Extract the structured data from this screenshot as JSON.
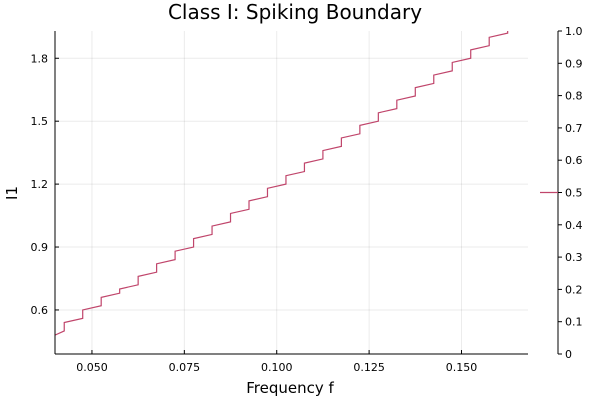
{
  "chart_data": {
    "type": "line",
    "title": "Class I: Spiking Boundary",
    "xlabel": "Frequency f",
    "ylabel": "I1",
    "xlim": [
      0.04,
      0.168
    ],
    "ylim": [
      0.39,
      1.93
    ],
    "x_ticks": [
      0.05,
      0.075,
      0.1,
      0.125,
      0.15
    ],
    "x_tick_labels": [
      "0.050",
      "0.075",
      "0.100",
      "0.125",
      "0.150"
    ],
    "y_ticks": [
      0.6,
      0.9,
      1.2,
      1.5,
      1.8
    ],
    "y_tick_labels": [
      "0.6",
      "0.9",
      "1.2",
      "1.5",
      "1.8"
    ],
    "right_axis": {
      "ylim": [
        0,
        1
      ],
      "ticks": [
        0,
        0.1,
        0.2,
        0.3,
        0.4,
        0.5,
        0.6,
        0.7,
        0.8,
        0.9,
        1.0
      ],
      "tick_labels": [
        "0",
        "0.1",
        "0.2",
        "0.3",
        "0.4",
        "0.5",
        "0.6",
        "0.7",
        "0.8",
        "0.9",
        "1.0"
      ],
      "marker_value": 0.5
    },
    "grid": true,
    "series": [
      {
        "color": "#c0456b",
        "step_x": [
          0.04,
          0.0425,
          0.0475,
          0.0525,
          0.0575,
          0.0625,
          0.0675,
          0.0725,
          0.0775,
          0.0825,
          0.0875,
          0.0925,
          0.0975,
          0.1025,
          0.1075,
          0.1125,
          0.1175,
          0.1225,
          0.1275,
          0.1325,
          0.1375,
          0.1425,
          0.1475,
          0.1525,
          0.1575,
          0.1625,
          0.1675
        ],
        "x_start": [
          0.04,
          0.0425,
          0.0475,
          0.0525,
          0.0575,
          0.0625,
          0.0675,
          0.0725,
          0.0775,
          0.0825,
          0.0875,
          0.0925,
          0.0975,
          0.1025,
          0.1075,
          0.1125,
          0.1175,
          0.1225,
          0.1275,
          0.1325,
          0.1375,
          0.1425,
          0.1475,
          0.1525,
          0.1575,
          0.1625,
          0.1675
        ],
        "x_end": [
          0.0425,
          0.0475,
          0.0525,
          0.0575,
          0.0625,
          0.0675,
          0.0725,
          0.0775,
          0.0825,
          0.0875,
          0.0925,
          0.0975,
          0.1025,
          0.1075,
          0.1125,
          0.1175,
          0.1225,
          0.1275,
          0.1325,
          0.1375,
          0.1425,
          0.1475,
          0.1525,
          0.1575,
          0.1625,
          0.1675,
          0.168
        ],
        "y_start": [
          0.48,
          0.54,
          0.6,
          0.66,
          0.7,
          0.76,
          0.82,
          0.88,
          0.94,
          1.0,
          1.06,
          1.12,
          1.18,
          1.24,
          1.3,
          1.36,
          1.42,
          1.48,
          1.54,
          1.6,
          1.66,
          1.72,
          1.78,
          1.84,
          1.9,
          1.96,
          1.97
        ],
        "y_end": [
          0.5,
          0.56,
          0.62,
          0.68,
          0.72,
          0.78,
          0.84,
          0.9,
          0.96,
          1.02,
          1.08,
          1.14,
          1.2,
          1.26,
          1.32,
          1.38,
          1.44,
          1.5,
          1.56,
          1.62,
          1.68,
          1.74,
          1.8,
          1.86,
          1.92,
          1.98,
          1.99
        ]
      }
    ]
  }
}
